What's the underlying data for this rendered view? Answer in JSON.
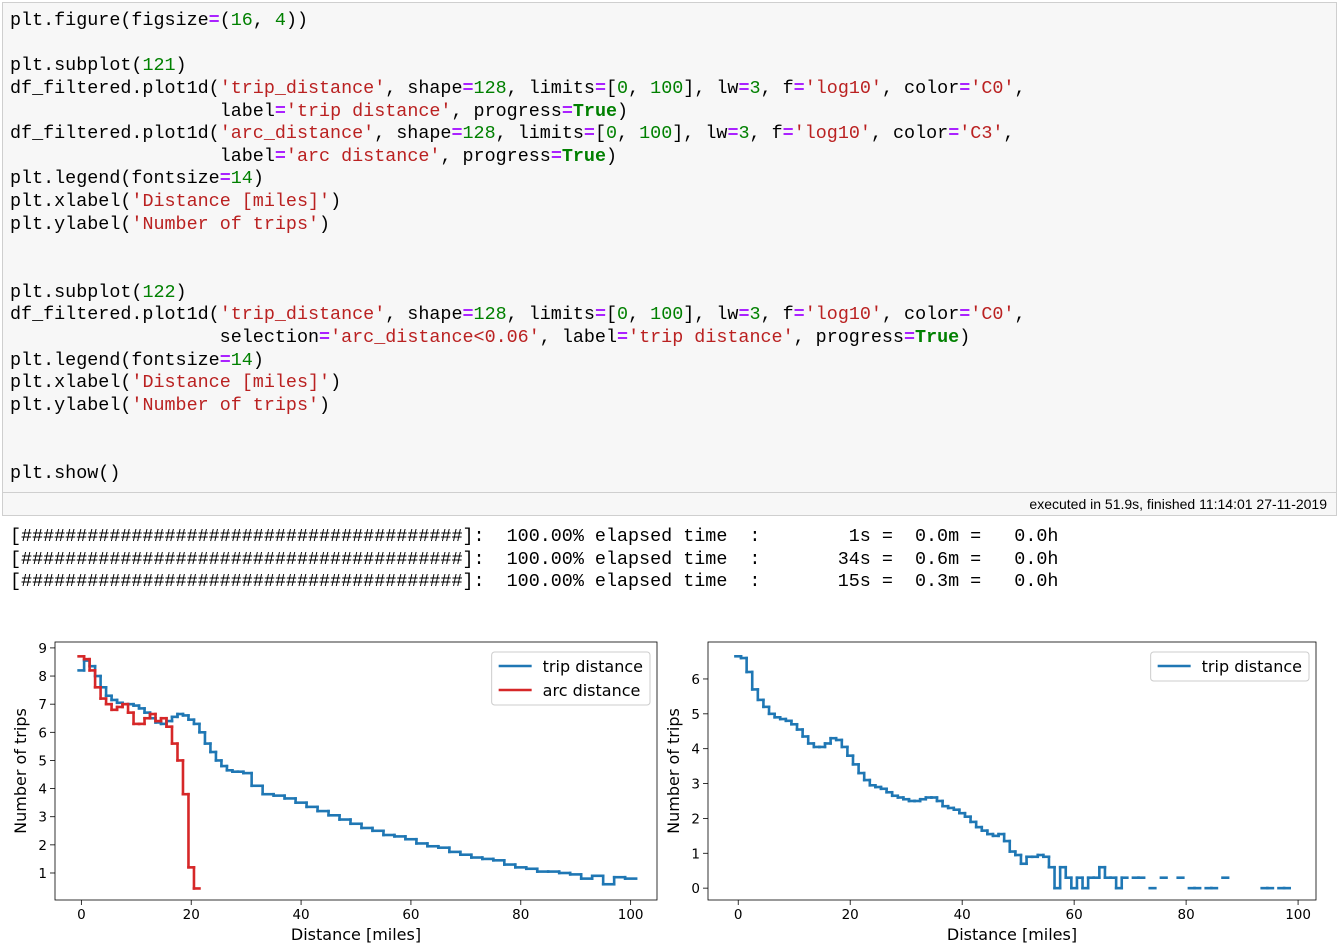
{
  "code_cell": {
    "blocks": [
      [
        "plt.figure(figsize=(16, 4))"
      ],
      [
        "plt.subplot(121)",
        "df_filtered.plot1d('trip_distance', shape=128, limits=[0, 100], lw=3, f='log10', color='C0',",
        "                   label='trip distance', progress=True)",
        "df_filtered.plot1d('arc_distance', shape=128, limits=[0, 100], lw=3, f='log10', color='C3',",
        "                   label='arc distance', progress=True)",
        "plt.legend(fontsize=14)",
        "plt.xlabel('Distance [miles]')",
        "plt.ylabel('Number of trips')"
      ],
      [
        "plt.subplot(122)",
        "df_filtered.plot1d('trip_distance', shape=128, limits=[0, 100], lw=3, f='log10', color='C0',",
        "                   selection='arc_distance<0.06', label='trip distance', progress=True)",
        "plt.legend(fontsize=14)",
        "plt.xlabel('Distance [miles]')",
        "plt.ylabel('Number of trips')"
      ],
      [
        "plt.show()"
      ]
    ],
    "execution_info": "executed in 51.9s, finished 11:14:01 27-11-2019"
  },
  "output": {
    "progress_lines": [
      "[########################################]:  100.00% elapsed time  :        1s =  0.0m =   0.0h",
      "[########################################]:  100.00% elapsed time  :       34s =  0.6m =   0.0h",
      "[########################################]:  100.00% elapsed time  :       15s =  0.3m =   0.0h"
    ]
  },
  "chart_data": [
    {
      "type": "line",
      "drawstyle": "steps-mid",
      "xlabel": "Distance [miles]",
      "ylabel": "Number of trips",
      "xlim": [
        -4.8,
        104.8
      ],
      "ylim": [
        0.04,
        9.21
      ],
      "xticks": [
        0,
        20,
        40,
        60,
        80,
        100
      ],
      "yticks": [
        1,
        2,
        3,
        4,
        5,
        6,
        7,
        8,
        9
      ],
      "legend": "upper right",
      "series": [
        {
          "name": "trip distance",
          "color": "#1f77b4",
          "x": [
            0,
            1,
            2,
            3,
            4,
            5,
            6,
            7,
            8,
            9,
            10,
            11,
            12,
            13,
            14,
            15,
            16,
            17,
            18,
            19,
            20,
            21,
            22,
            23,
            24,
            25,
            26,
            27,
            28,
            29,
            30,
            32,
            34,
            36,
            38,
            40,
            42,
            44,
            46,
            48,
            50,
            52,
            54,
            56,
            58,
            60,
            62,
            64,
            66,
            68,
            70,
            72,
            74,
            76,
            78,
            80,
            82,
            84,
            86,
            88,
            90,
            92,
            94,
            96,
            98,
            100
          ],
          "values": [
            8.2,
            8.55,
            8.35,
            8.0,
            7.6,
            7.3,
            7.15,
            7.05,
            7.0,
            7.0,
            6.95,
            6.85,
            6.7,
            6.5,
            6.35,
            6.3,
            6.4,
            6.55,
            6.65,
            6.6,
            6.45,
            6.3,
            6.0,
            5.6,
            5.3,
            5.0,
            4.8,
            4.65,
            4.6,
            4.6,
            4.55,
            4.1,
            3.8,
            3.75,
            3.65,
            3.5,
            3.35,
            3.2,
            3.05,
            2.9,
            2.75,
            2.6,
            2.5,
            2.35,
            2.3,
            2.2,
            2.05,
            1.95,
            1.9,
            1.75,
            1.65,
            1.55,
            1.5,
            1.45,
            1.3,
            1.2,
            1.15,
            1.05,
            1.05,
            1.0,
            0.95,
            0.8,
            0.9,
            0.6,
            0.85,
            0.8
          ]
        },
        {
          "name": "arc distance",
          "color": "#d62728",
          "x": [
            0,
            1,
            2,
            3,
            4,
            5,
            6,
            7,
            8,
            9,
            10,
            11,
            12,
            13,
            14,
            15,
            16,
            17,
            18,
            19,
            20,
            21
          ],
          "values": [
            8.7,
            8.6,
            8.2,
            7.6,
            7.2,
            7.0,
            6.8,
            6.9,
            7.0,
            6.7,
            6.3,
            6.3,
            6.5,
            6.65,
            6.4,
            6.5,
            6.2,
            5.6,
            5.0,
            3.8,
            1.2,
            0.45
          ]
        }
      ]
    },
    {
      "type": "line",
      "drawstyle": "steps-mid",
      "xlabel": "Distance [miles]",
      "ylabel": "Number of trips",
      "xlim": [
        -5.4,
        103.2
      ],
      "ylim": [
        -0.34,
        7.06
      ],
      "xticks": [
        0,
        20,
        40,
        60,
        80,
        100
      ],
      "yticks": [
        0,
        1,
        2,
        3,
        4,
        5,
        6
      ],
      "legend": "upper right",
      "series": [
        {
          "name": "trip distance",
          "color": "#1f77b4",
          "x": [
            0,
            1,
            2,
            3,
            4,
            5,
            6,
            7,
            8,
            9,
            10,
            11,
            12,
            13,
            14,
            15,
            16,
            17,
            18,
            19,
            20,
            21,
            22,
            23,
            24,
            25,
            26,
            27,
            28,
            29,
            30,
            31,
            32,
            33,
            34,
            35,
            36,
            37,
            38,
            39,
            40,
            41,
            42,
            43,
            44,
            45,
            46,
            47,
            48,
            49,
            50,
            51,
            52,
            53,
            54,
            55,
            56,
            57,
            58,
            59,
            60,
            61,
            62,
            63,
            64,
            65,
            66,
            67,
            68,
            69,
            70,
            71,
            72,
            73,
            74,
            75,
            76,
            77,
            78,
            79,
            80,
            81,
            82,
            83,
            84,
            85,
            86,
            87,
            88,
            89,
            90,
            91,
            92,
            93,
            94,
            95,
            96,
            97,
            98
          ],
          "values": [
            6.65,
            6.6,
            6.2,
            5.7,
            5.4,
            5.2,
            5.0,
            4.9,
            4.85,
            4.8,
            4.7,
            4.55,
            4.35,
            4.15,
            4.05,
            4.05,
            4.15,
            4.3,
            4.25,
            4.05,
            3.8,
            3.55,
            3.3,
            3.1,
            2.95,
            2.9,
            2.85,
            2.75,
            2.65,
            2.6,
            2.55,
            2.5,
            2.5,
            2.55,
            2.6,
            2.6,
            2.5,
            2.35,
            2.3,
            2.25,
            2.15,
            2.05,
            1.9,
            1.75,
            1.65,
            1.55,
            1.5,
            1.55,
            1.35,
            1.05,
            0.95,
            0.7,
            0.9,
            0.9,
            0.95,
            0.9,
            0.6,
            0.0,
            0.6,
            0.3,
            0.0,
            0.3,
            0.0,
            0.3,
            0.3,
            0.6,
            0.3,
            0.3,
            0.0,
            0.3,
            null,
            0.3,
            0.3,
            null,
            0.0,
            null,
            0.3,
            null,
            null,
            0.3,
            null,
            0.0,
            0.0,
            null,
            0.0,
            0.0,
            null,
            0.3,
            null,
            null,
            null,
            null,
            null,
            null,
            0.0,
            0.0,
            null,
            0.0,
            0.0
          ]
        }
      ]
    }
  ]
}
